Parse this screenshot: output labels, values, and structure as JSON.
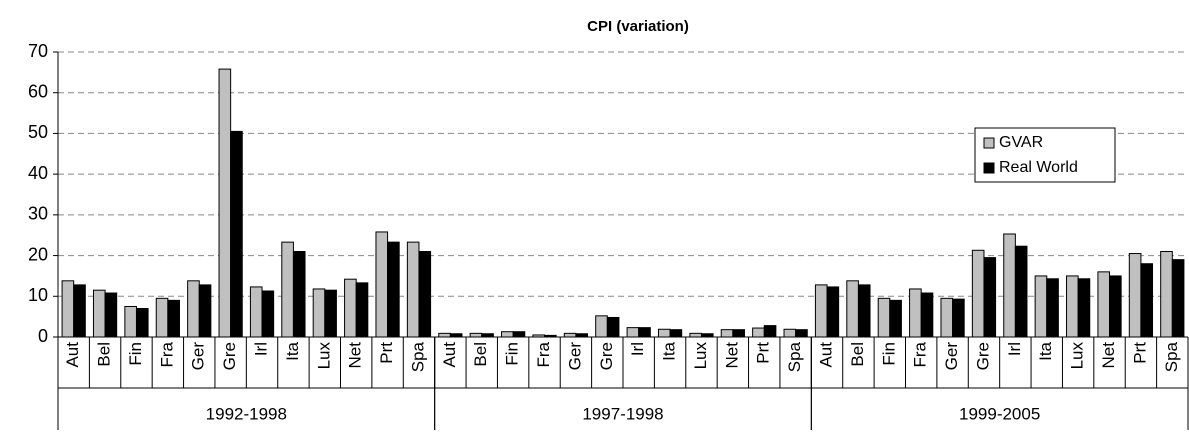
{
  "chart_data": {
    "type": "bar",
    "title": "CPI (variation)",
    "category_groups": [
      {
        "name": "1992-1998",
        "categories": [
          "Aut",
          "Bel",
          "Fin",
          "Fra",
          "Ger",
          "Gre",
          "Irl",
          "Ita",
          "Lux",
          "Net",
          "Prt",
          "Spa"
        ]
      },
      {
        "name": "1997-1998",
        "categories": [
          "Aut",
          "Bel",
          "Fin",
          "Fra",
          "Ger",
          "Gre",
          "Irl",
          "Ita",
          "Lux",
          "Net",
          "Prt",
          "Spa"
        ]
      },
      {
        "name": "1999-2005",
        "categories": [
          "Aut",
          "Bel",
          "Fin",
          "Fra",
          "Ger",
          "Gre",
          "Irl",
          "Ita",
          "Lux",
          "Net",
          "Prt",
          "Spa"
        ]
      }
    ],
    "series": [
      {
        "name": "GVAR",
        "color": "#c0c0c0",
        "values": [
          13.8,
          11.5,
          7.5,
          9.5,
          13.8,
          65.8,
          12.3,
          23.3,
          11.8,
          14.2,
          25.8,
          23.3,
          0.9,
          0.9,
          1.3,
          0.5,
          0.9,
          5.2,
          2.3,
          1.9,
          0.9,
          1.8,
          2.2,
          1.9,
          12.8,
          13.8,
          9.5,
          11.8,
          9.5,
          21.3,
          25.3,
          15.0,
          15.0,
          16.0,
          20.5,
          21.0
        ]
      },
      {
        "name": "Real World",
        "color": "#000000",
        "values": [
          12.8,
          10.8,
          7.0,
          9.0,
          12.8,
          50.5,
          11.3,
          21.0,
          11.5,
          13.3,
          23.3,
          21.0,
          0.8,
          0.8,
          1.3,
          0.4,
          0.8,
          4.8,
          2.3,
          1.8,
          0.8,
          1.8,
          2.8,
          1.8,
          12.3,
          12.8,
          9.0,
          10.8,
          9.3,
          19.5,
          22.3,
          14.3,
          14.3,
          15.0,
          18.0,
          19.0
        ]
      }
    ],
    "ylim": [
      0,
      70
    ],
    "yticks": [
      0,
      10,
      20,
      30,
      40,
      50,
      60,
      70
    ],
    "grid": true,
    "legend": "right"
  }
}
